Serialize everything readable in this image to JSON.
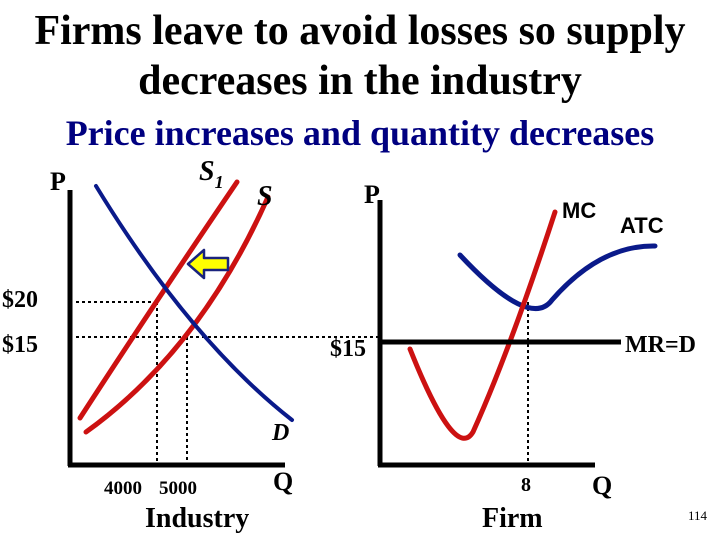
{
  "slide": {
    "title_line1": "Firms leave to avoid losses so supply",
    "title_line2": "decreases in the industry",
    "subtitle": "Price increases and quantity decreases",
    "page_number": "114"
  },
  "industry": {
    "y_axis_label": "P",
    "x_axis_label": "Q",
    "caption": "Industry",
    "price_high": "$20",
    "price_low": "$15",
    "qty_left": "4000",
    "qty_right": "5000",
    "supply_new_label": "S",
    "supply_new_subscript": "1",
    "supply_old_label": "S",
    "demand_label": "D"
  },
  "firm": {
    "y_axis_label": "P",
    "x_axis_label": "Q",
    "caption": "Firm",
    "price_label": "$15",
    "mr_label": "MR=D",
    "mc_label": "MC",
    "atc_label": "ATC",
    "qty_label": "8"
  },
  "colors": {
    "supply": "#cc1111",
    "demand": "#0a1a8a",
    "subtitle": "#000080",
    "arrow_fill": "#ffff00",
    "arrow_stroke": "#1a237e"
  }
}
